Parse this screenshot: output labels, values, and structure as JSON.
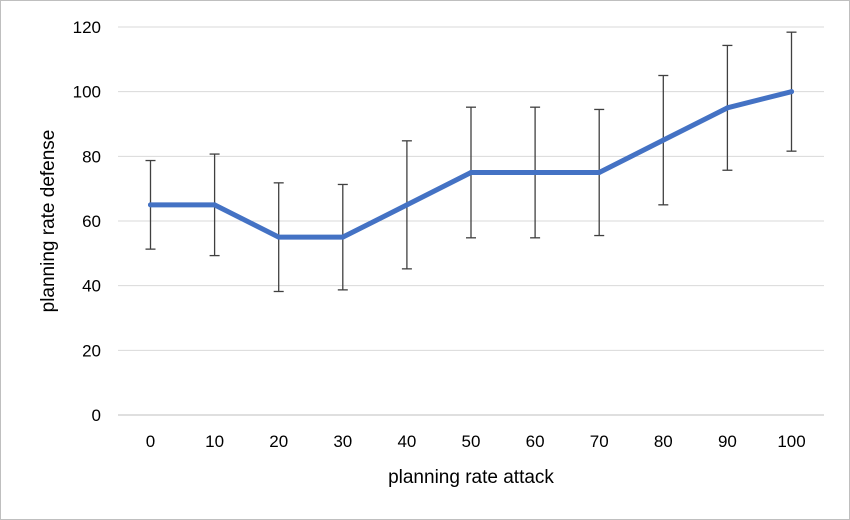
{
  "chart_data": {
    "type": "line",
    "xlabel": "planning rate attack",
    "ylabel": "planning rate defense",
    "x": [
      0,
      10,
      20,
      30,
      40,
      50,
      60,
      70,
      80,
      90,
      100
    ],
    "categories": [
      "0",
      "10",
      "20",
      "30",
      "40",
      "50",
      "60",
      "70",
      "80",
      "90",
      "100"
    ],
    "series": [
      {
        "values": [
          65,
          65,
          55,
          55,
          65,
          75,
          75,
          75,
          85,
          95,
          100
        ],
        "error_low": [
          51.3,
          49.3,
          38.2,
          38.7,
          45.2,
          54.8,
          54.8,
          55.5,
          65.0,
          75.7,
          81.6
        ],
        "error_high": [
          78.7,
          80.7,
          71.8,
          71.3,
          84.8,
          95.2,
          95.2,
          94.5,
          105.0,
          114.3,
          118.4
        ],
        "color": "#4472c4"
      }
    ],
    "ylim": [
      0,
      120
    ],
    "yticks": [
      0,
      20,
      40,
      60,
      80,
      100,
      120
    ],
    "grid": true,
    "legend": false
  }
}
